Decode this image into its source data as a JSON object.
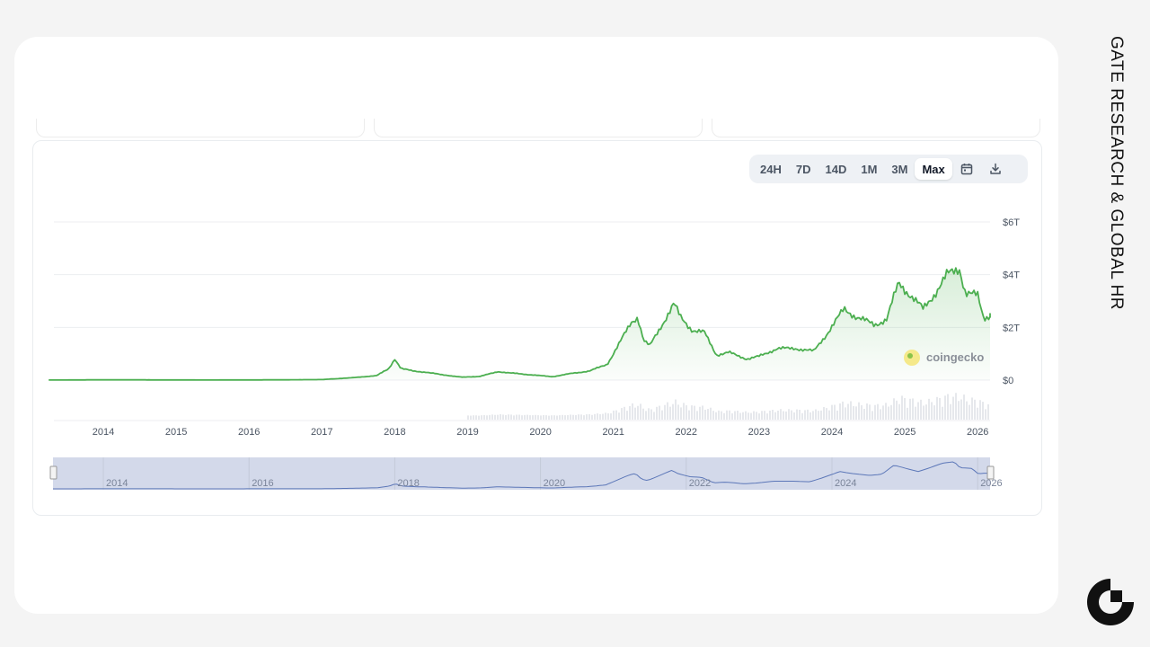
{
  "sidebar_label": "GATE RESEARCH & GLOBAL HR",
  "range_buttons": [
    "24H",
    "7D",
    "14D",
    "1M",
    "3M",
    "Max"
  ],
  "active_range": "Max",
  "icons": {
    "calendar": "calendar-icon",
    "download": "download-icon",
    "watermark": "coingecko-logo",
    "brand": "gate-logo"
  },
  "watermark_text": "coingecko",
  "colors": {
    "line": "#4caf50",
    "fill": "#e8f5e9",
    "navigator": "#d3d9ea",
    "navigator_line": "#5c77b8",
    "volume": "#e6e8ec"
  },
  "chart_data": {
    "type": "area",
    "title": "",
    "xlabel": "",
    "ylabel": "",
    "x_ticks": [
      "2014",
      "2015",
      "2016",
      "2017",
      "2018",
      "2019",
      "2020",
      "2021",
      "2022",
      "2023",
      "2024",
      "2025",
      "2026"
    ],
    "y_ticks": [
      "$0",
      "$2T",
      "$4T",
      "$6T"
    ],
    "ylim": [
      0,
      6
    ],
    "y_unit": "T USD",
    "grid": true,
    "navigator_ticks": [
      "2014",
      "2016",
      "2018",
      "2020",
      "2022",
      "2024",
      "2026"
    ],
    "series": [
      {
        "values": [
          [
            "2013-04",
            0.002
          ],
          [
            "2013-12",
            0.01
          ],
          [
            "2014-06",
            0.01
          ],
          [
            "2015-06",
            0.004
          ],
          [
            "2016-06",
            0.01
          ],
          [
            "2017-01",
            0.02
          ],
          [
            "2017-06",
            0.09
          ],
          [
            "2017-10",
            0.17
          ],
          [
            "2017-12",
            0.43
          ],
          [
            "2018-01",
            0.81
          ],
          [
            "2018-02",
            0.44
          ],
          [
            "2018-04",
            0.35
          ],
          [
            "2018-06",
            0.3
          ],
          [
            "2018-09",
            0.2
          ],
          [
            "2018-12",
            0.11
          ],
          [
            "2019-03",
            0.14
          ],
          [
            "2019-06",
            0.32
          ],
          [
            "2019-09",
            0.25
          ],
          [
            "2019-12",
            0.19
          ],
          [
            "2020-03",
            0.13
          ],
          [
            "2020-06",
            0.25
          ],
          [
            "2020-09",
            0.34
          ],
          [
            "2020-12",
            0.6
          ],
          [
            "2021-02",
            1.4
          ],
          [
            "2021-04",
            2.2
          ],
          [
            "2021-05",
            2.4
          ],
          [
            "2021-06",
            1.5
          ],
          [
            "2021-07",
            1.3
          ],
          [
            "2021-09",
            2.1
          ],
          [
            "2021-11",
            2.9
          ],
          [
            "2021-12",
            2.4
          ],
          [
            "2022-02",
            1.9
          ],
          [
            "2022-04",
            1.8
          ],
          [
            "2022-06",
            0.95
          ],
          [
            "2022-08",
            1.05
          ],
          [
            "2022-11",
            0.8
          ],
          [
            "2023-01",
            0.9
          ],
          [
            "2023-04",
            1.2
          ],
          [
            "2023-07",
            1.2
          ],
          [
            "2023-10",
            1.1
          ],
          [
            "2023-12",
            1.7
          ],
          [
            "2024-03",
            2.7
          ],
          [
            "2024-05",
            2.4
          ],
          [
            "2024-08",
            2.1
          ],
          [
            "2024-10",
            2.3
          ],
          [
            "2024-12",
            3.7
          ],
          [
            "2025-02",
            3.2
          ],
          [
            "2025-04",
            2.7
          ],
          [
            "2025-06",
            3.3
          ],
          [
            "2025-08",
            4.0
          ],
          [
            "2025-10",
            4.25
          ],
          [
            "2025-11",
            3.3
          ],
          [
            "2026-01",
            3.2
          ],
          [
            "2026-02",
            2.35
          ],
          [
            "2026-03",
            2.45
          ]
        ]
      }
    ]
  }
}
